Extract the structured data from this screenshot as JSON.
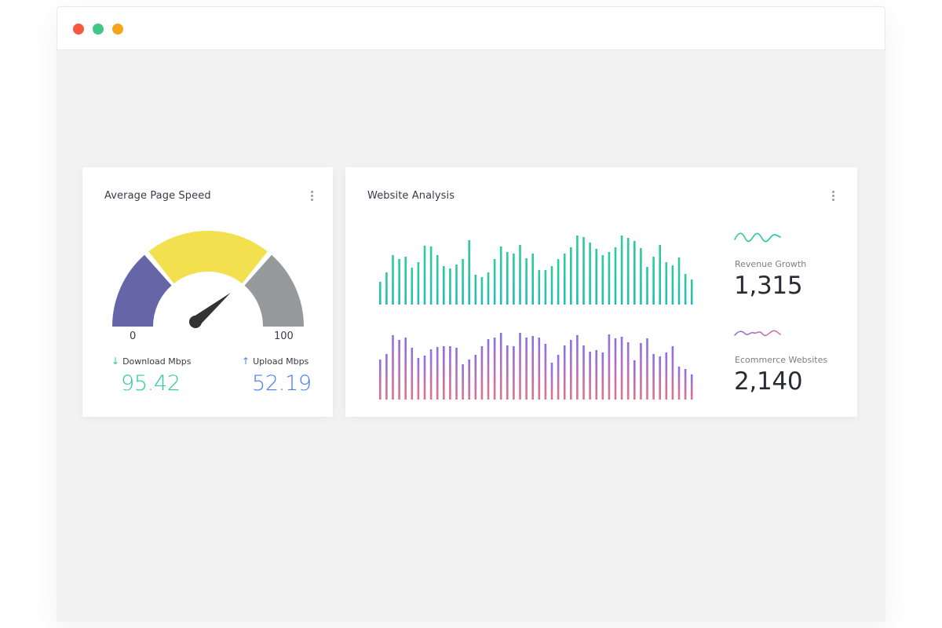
{
  "colors": {
    "close": "#f9573e",
    "minimize": "#3fc785",
    "maximize": "#f6a41c",
    "gauge_left": "#6565a8",
    "gauge_mid": "#f3e04e",
    "gauge_right": "#979a9b",
    "needle": "#333333",
    "download": "#2dcc96",
    "upload": "#4b7fe8",
    "bars_top_start": "#2ecc9a",
    "bars_top_end": "#25bcb7",
    "bars_bottom_start": "#8c6fe6",
    "bars_bottom_end": "#e2718e"
  },
  "speed_card": {
    "title": "Average Page Speed",
    "menu_icon": "more-vertical-icon",
    "gauge_min": "0",
    "gauge_max": "100",
    "gauge_level": 0.78,
    "download_icon": "arrow-down-icon",
    "download_arrow": "↓",
    "download_label": "Download Mbps",
    "download_value": "95.42",
    "upload_icon": "arrow-up-icon",
    "upload_arrow": "↑",
    "upload_label": "Upload Mbps",
    "upload_value": "52.19"
  },
  "analysis_card": {
    "title": "Website Analysis",
    "menu_icon": "more-vertical-icon",
    "revenue_label": "Revenue Growth",
    "revenue_value": "1,315",
    "ecommerce_label": "Ecommerce Websites",
    "ecommerce_value": "2,140"
  },
  "chart_data": [
    {
      "type": "bar",
      "values": [
        29,
        41,
        63,
        58,
        61,
        47,
        54,
        75,
        74,
        63,
        49,
        46,
        51,
        58,
        82,
        38,
        35,
        41,
        58,
        74,
        67,
        65,
        76,
        59,
        65,
        44,
        44,
        49,
        58,
        65,
        73,
        88,
        86,
        79,
        71,
        63,
        67,
        73,
        88,
        85,
        81,
        72,
        48,
        61,
        76,
        54,
        50,
        60,
        39,
        32
      ]
    },
    {
      "type": "bar",
      "values": [
        51,
        58,
        82,
        76,
        79,
        66,
        53,
        56,
        64,
        67,
        68,
        68,
        66,
        45,
        51,
        57,
        68,
        77,
        79,
        85,
        69,
        68,
        85,
        79,
        81,
        79,
        71,
        47,
        57,
        69,
        76,
        82,
        69,
        61,
        63,
        60,
        83,
        78,
        80,
        73,
        50,
        72,
        78,
        58,
        55,
        60,
        68,
        42,
        39,
        32
      ]
    }
  ]
}
